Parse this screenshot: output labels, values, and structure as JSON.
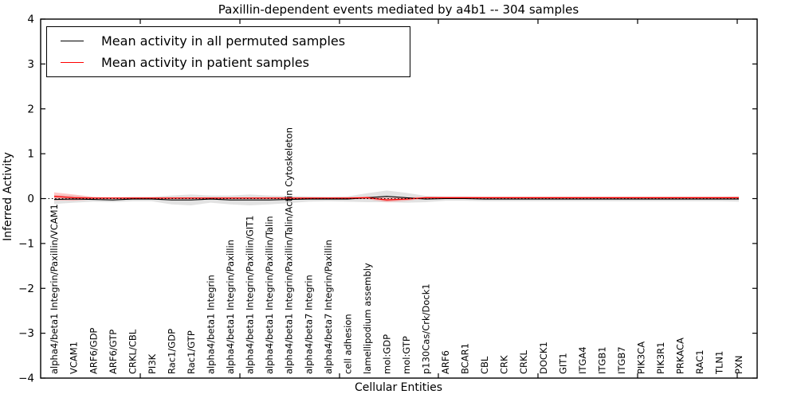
{
  "chart_data": {
    "type": "line",
    "title": "Paxillin-dependent events mediated by a4b1 -- 304 samples",
    "xlabel": "Cellular Entities",
    "ylabel": "Inferred Activity",
    "ylim": [
      -4,
      4
    ],
    "ytick_labels": [
      "4",
      "3",
      "2",
      "1",
      "0",
      "−1",
      "−2",
      "−3",
      "−4"
    ],
    "ytick_values": [
      4,
      3,
      2,
      1,
      0,
      -1,
      -2,
      -3,
      -4
    ],
    "grid": false,
    "legend_position": "upper left",
    "zero_line": {
      "value": 0,
      "style": "dotted",
      "color": "#000000"
    },
    "categories": [
      "alpha4/beta1 Integrin/Paxillin/VCAM1",
      "VCAM1",
      "ARF6/GDP",
      "ARF6/GTP",
      "CRKL/CBL",
      "PI3K",
      "Rac1/GDP",
      "Rac1/GTP",
      "alpha4/beta1 Integrin",
      "alpha4/beta1 Integrin/Paxillin",
      "alpha4/beta1 Integrin/Paxillin/GIT1",
      "alpha4/beta1 Integrin/Paxillin/Talin",
      "alpha4/beta1 Integrin/Paxillin/Talin/Actin Cytoskeleton",
      "alpha4/beta7 Integrin",
      "alpha4/beta7 Integrin/Paxillin",
      "cell adhesion",
      "lamellipodium assembly",
      "mol:GDP",
      "mol:GTP",
      "p130Cas/Crk/Dock1",
      "ARF6",
      "BCAR1",
      "CBL",
      "CRK",
      "CRKL",
      "DOCK1",
      "GIT1",
      "ITGA4",
      "ITGB1",
      "ITGB7",
      "PIK3CA",
      "PIK3R1",
      "PRKACA",
      "RAC1",
      "TLN1",
      "PXN"
    ],
    "series": [
      {
        "name": "Mean activity in all permuted samples",
        "color": "#000000",
        "style": "solid",
        "values": [
          -0.02,
          -0.01,
          -0.02,
          -0.03,
          -0.01,
          -0.01,
          -0.03,
          -0.03,
          -0.01,
          -0.03,
          -0.03,
          -0.03,
          -0.02,
          -0.01,
          -0.01,
          -0.01,
          0.02,
          0.05,
          0.02,
          -0.01,
          0.0,
          0.0,
          -0.01,
          -0.01,
          -0.01,
          -0.01,
          -0.01,
          -0.01,
          -0.01,
          -0.01,
          -0.01,
          -0.01,
          -0.01,
          -0.01,
          -0.01,
          -0.01
        ],
        "band_halfwidth": [
          0.1,
          0.08,
          0.05,
          0.05,
          0.05,
          0.05,
          0.1,
          0.12,
          0.08,
          0.1,
          0.12,
          0.1,
          0.08,
          0.06,
          0.05,
          0.06,
          0.1,
          0.13,
          0.11,
          0.07,
          0.05,
          0.05,
          0.05,
          0.05,
          0.05,
          0.05,
          0.05,
          0.05,
          0.05,
          0.05,
          0.05,
          0.05,
          0.05,
          0.05,
          0.05,
          0.06
        ],
        "band_color": "#bfbfbf"
      },
      {
        "name": "Mean activity in patient samples",
        "color": "#ff0000",
        "style": "solid",
        "values": [
          0.05,
          0.02,
          0.01,
          0.01,
          0.01,
          0.01,
          0.01,
          0.01,
          0.01,
          0.01,
          0.01,
          0.01,
          0.01,
          0.01,
          0.01,
          0.01,
          0.02,
          -0.03,
          -0.01,
          0.02,
          0.02,
          0.02,
          0.02,
          0.02,
          0.02,
          0.02,
          0.02,
          0.02,
          0.02,
          0.02,
          0.02,
          0.02,
          0.02,
          0.02,
          0.02,
          0.02
        ],
        "band_halfwidth": [
          0.09,
          0.07,
          0.03,
          0.02,
          0.02,
          0.02,
          0.02,
          0.02,
          0.02,
          0.02,
          0.02,
          0.02,
          0.02,
          0.02,
          0.02,
          0.02,
          0.03,
          0.05,
          0.04,
          0.02,
          0.02,
          0.02,
          0.02,
          0.02,
          0.02,
          0.02,
          0.02,
          0.02,
          0.02,
          0.02,
          0.02,
          0.02,
          0.02,
          0.02,
          0.02,
          0.02
        ],
        "band_color": "#ff8080"
      }
    ]
  }
}
